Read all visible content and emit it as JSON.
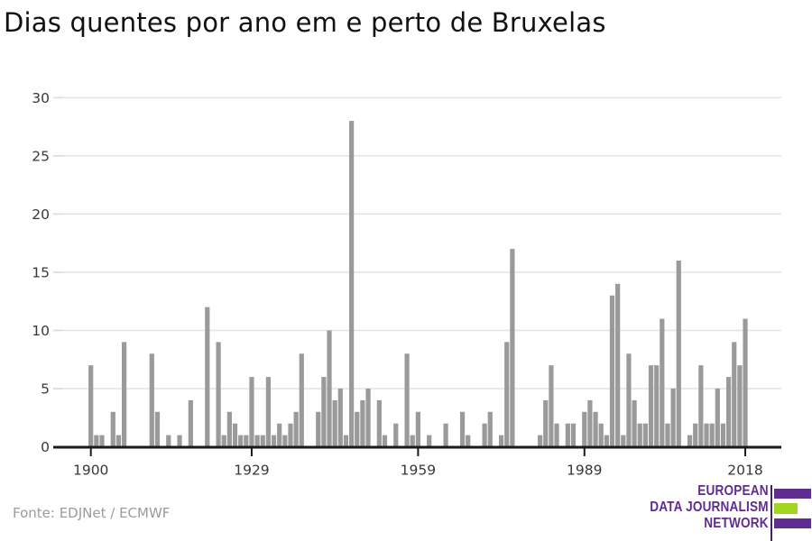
{
  "title": "Dias quentes por ano em e perto de Bruxelas",
  "source": "Fonte: EDJNet / ECMWF",
  "logo": {
    "line1": "EUROPEAN",
    "line2": "DATA JOURNALISM",
    "line3": "NETWORK",
    "purple": "#5f2c8f",
    "green": "#a3d420",
    "rule_color": "#45225f"
  },
  "colors": {
    "bar": "#9a9a9a",
    "gridline": "#e4e4e4",
    "axis": "#1a1a1a",
    "tick_label": "#383838",
    "title_text": "#111111",
    "source_text": "#9b9b9b",
    "background": "#ffffff"
  },
  "chart_data": {
    "type": "bar",
    "title": "Dias quentes por ano em e perto de Bruxelas",
    "xlabel": "",
    "ylabel": "",
    "grid": true,
    "legend": false,
    "xlim": [
      1893,
      2025
    ],
    "ylim": [
      0,
      30
    ],
    "xticks": [
      1900,
      1929,
      1959,
      1989,
      2018
    ],
    "yticks": [
      0,
      5,
      10,
      15,
      20,
      25,
      30
    ],
    "x": [
      1900,
      1901,
      1902,
      1903,
      1904,
      1905,
      1906,
      1907,
      1908,
      1909,
      1910,
      1911,
      1912,
      1913,
      1914,
      1915,
      1916,
      1917,
      1918,
      1919,
      1920,
      1921,
      1922,
      1923,
      1924,
      1925,
      1926,
      1927,
      1928,
      1929,
      1930,
      1931,
      1932,
      1933,
      1934,
      1935,
      1936,
      1937,
      1938,
      1939,
      1940,
      1941,
      1942,
      1943,
      1944,
      1945,
      1946,
      1947,
      1948,
      1949,
      1950,
      1951,
      1952,
      1953,
      1954,
      1955,
      1956,
      1957,
      1958,
      1959,
      1960,
      1961,
      1962,
      1963,
      1964,
      1965,
      1966,
      1967,
      1968,
      1969,
      1970,
      1971,
      1972,
      1973,
      1974,
      1975,
      1976,
      1977,
      1978,
      1979,
      1980,
      1981,
      1982,
      1983,
      1984,
      1985,
      1986,
      1987,
      1988,
      1989,
      1990,
      1991,
      1992,
      1993,
      1994,
      1995,
      1996,
      1997,
      1998,
      1999,
      2000,
      2001,
      2002,
      2003,
      2004,
      2005,
      2006,
      2007,
      2008,
      2009,
      2010,
      2011,
      2012,
      2013,
      2014,
      2015,
      2016,
      2017,
      2018
    ],
    "values": [
      7,
      1,
      1,
      0,
      3,
      1,
      9,
      0,
      0,
      0,
      0,
      8,
      3,
      0,
      1,
      0,
      1,
      0,
      4,
      0,
      0,
      12,
      0,
      9,
      1,
      3,
      2,
      1,
      1,
      6,
      1,
      1,
      6,
      1,
      2,
      1,
      2,
      3,
      8,
      0,
      0,
      3,
      6,
      10,
      4,
      5,
      1,
      28,
      3,
      4,
      5,
      0,
      4,
      1,
      0,
      2,
      0,
      8,
      1,
      3,
      0,
      1,
      0,
      0,
      2,
      0,
      0,
      3,
      1,
      0,
      0,
      2,
      3,
      0,
      1,
      9,
      17,
      0,
      0,
      0,
      0,
      1,
      4,
      7,
      2,
      0,
      2,
      2,
      0,
      3,
      4,
      3,
      2,
      1,
      13,
      14,
      1,
      8,
      4,
      2,
      2,
      7,
      7,
      11,
      2,
      5,
      16,
      0,
      1,
      2,
      7,
      2,
      2,
      5,
      2,
      6,
      9,
      7,
      11
    ]
  }
}
